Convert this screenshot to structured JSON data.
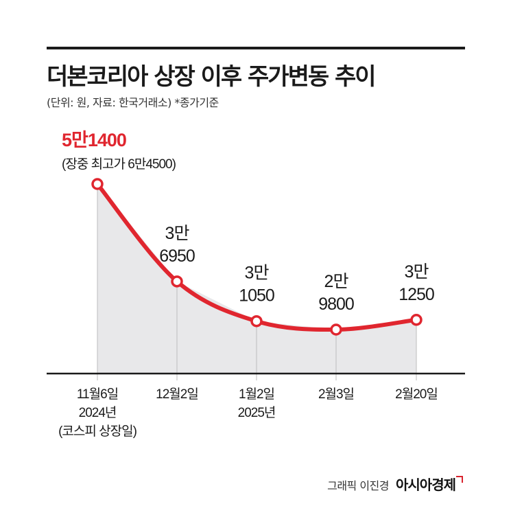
{
  "title": "더본코리아 상장 이후 주가변동 추이",
  "subtitle": "(단위: 원, 자료: 한국거래소) *종가기준",
  "credit": {
    "graphic": "그래픽 이진경",
    "brand": "아시아경제"
  },
  "colors": {
    "line": "#e0262f",
    "area": "#e8e8ea",
    "axis": "#1a1a1a",
    "highlight_label": "#e0262f"
  },
  "chart_data": {
    "type": "area",
    "categories": [
      [
        "11월6일",
        "2024년",
        "(코스피 상장일)"
      ],
      [
        "12월2일"
      ],
      [
        "1월2일",
        "2025년"
      ],
      [
        "2월3일"
      ],
      [
        "2월20일"
      ]
    ],
    "values": [
      51400,
      36950,
      31050,
      29800,
      31250
    ],
    "point_labels": [
      {
        "lines": [
          "5만1400"
        ],
        "note": "(장중 최고가 6만4500)",
        "highlight": true
      },
      {
        "lines": [
          "3만",
          "6950"
        ]
      },
      {
        "lines": [
          "3만",
          "1050"
        ]
      },
      {
        "lines": [
          "2만",
          "9800"
        ]
      },
      {
        "lines": [
          "3만",
          "1250"
        ]
      }
    ],
    "grid": false
  }
}
